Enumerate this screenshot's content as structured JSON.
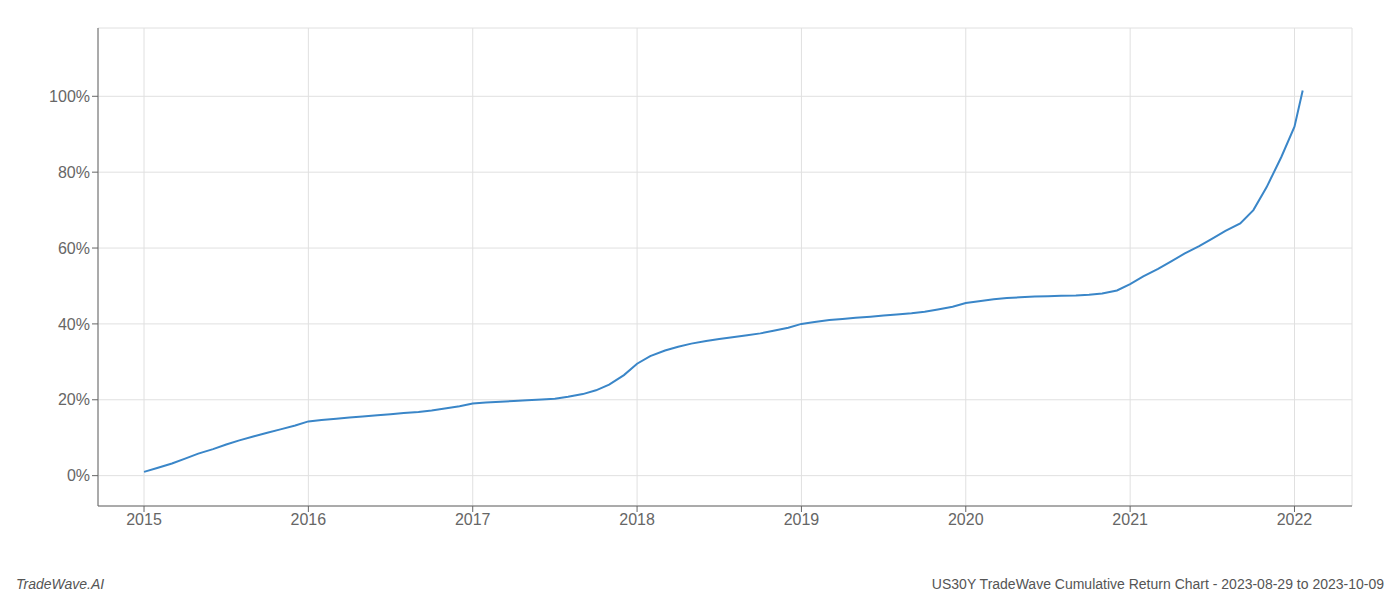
{
  "chart_data": {
    "type": "line",
    "x": [
      2015.0,
      2015.08,
      2015.17,
      2015.25,
      2015.33,
      2015.42,
      2015.5,
      2015.58,
      2015.67,
      2015.75,
      2015.83,
      2015.92,
      2016.0,
      2016.08,
      2016.17,
      2016.25,
      2016.33,
      2016.42,
      2016.5,
      2016.58,
      2016.67,
      2016.75,
      2016.83,
      2016.92,
      2017.0,
      2017.08,
      2017.17,
      2017.25,
      2017.33,
      2017.42,
      2017.5,
      2017.58,
      2017.67,
      2017.75,
      2017.83,
      2017.92,
      2018.0,
      2018.08,
      2018.17,
      2018.25,
      2018.33,
      2018.42,
      2018.5,
      2018.58,
      2018.67,
      2018.75,
      2018.83,
      2018.92,
      2019.0,
      2019.08,
      2019.17,
      2019.25,
      2019.33,
      2019.42,
      2019.5,
      2019.58,
      2019.67,
      2019.75,
      2019.83,
      2019.92,
      2020.0,
      2020.08,
      2020.17,
      2020.25,
      2020.33,
      2020.42,
      2020.5,
      2020.58,
      2020.67,
      2020.75,
      2020.83,
      2020.92,
      2021.0,
      2021.08,
      2021.17,
      2021.25,
      2021.33,
      2021.42,
      2021.5,
      2021.58,
      2021.67,
      2021.75,
      2021.83,
      2021.92,
      2022.0,
      2022.05
    ],
    "values": [
      1.0,
      2.0,
      3.2,
      4.5,
      5.8,
      7.0,
      8.2,
      9.3,
      10.4,
      11.3,
      12.2,
      13.2,
      14.3,
      14.7,
      15.0,
      15.3,
      15.6,
      15.9,
      16.2,
      16.5,
      16.8,
      17.2,
      17.7,
      18.3,
      19.0,
      19.3,
      19.5,
      19.7,
      19.9,
      20.1,
      20.3,
      20.8,
      21.5,
      22.5,
      24.0,
      26.5,
      29.5,
      31.5,
      33.0,
      34.0,
      34.8,
      35.5,
      36.0,
      36.5,
      37.0,
      37.5,
      38.2,
      39.0,
      40.0,
      40.5,
      41.0,
      41.3,
      41.6,
      41.9,
      42.2,
      42.5,
      42.8,
      43.2,
      43.8,
      44.5,
      45.5,
      46.0,
      46.5,
      46.8,
      47.0,
      47.2,
      47.3,
      47.4,
      47.5,
      47.7,
      48.0,
      48.8,
      50.5,
      52.5,
      54.5,
      56.5,
      58.5,
      60.5,
      62.5,
      64.5,
      66.5,
      70.0,
      76.0,
      84.0,
      92.0,
      101.5
    ],
    "color": "#3a86c8",
    "xlim": [
      2014.72,
      2022.35
    ],
    "xticks": [
      2015,
      2016,
      2017,
      2018,
      2019,
      2020,
      2021,
      2022
    ],
    "ylim": [
      -8,
      118
    ],
    "yticks": [
      {
        "value": 0,
        "label": "0%"
      },
      {
        "value": 20,
        "label": "20%"
      },
      {
        "value": 40,
        "label": "40%"
      },
      {
        "value": 60,
        "label": "60%"
      },
      {
        "value": 80,
        "label": "80%"
      },
      {
        "value": 100,
        "label": "100%"
      }
    ],
    "grid": true,
    "annotations": [
      "TradeWave.AI",
      "US30Y TradeWave Cumulative Return Chart - 2023-08-29 to 2023-10-09"
    ]
  }
}
